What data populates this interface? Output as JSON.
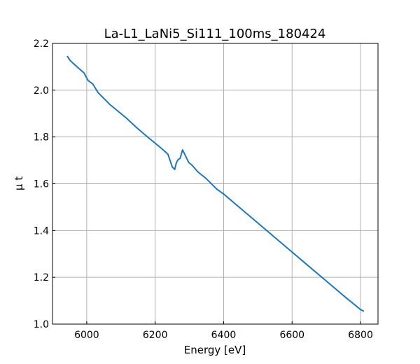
{
  "chart_data": {
    "type": "line",
    "title": "La-L1_LaNi5_Si111_100ms_180424",
    "xlabel": "Energy [eV]",
    "ylabel": "μ t",
    "xlim": [
      5900,
      6851
    ],
    "ylim": [
      1.0,
      2.2
    ],
    "xticks": [
      6000,
      6200,
      6400,
      6600,
      6800
    ],
    "yticks": [
      1.0,
      1.2,
      1.4,
      1.6,
      1.8,
      2.0,
      2.2
    ],
    "xtick_labels": [
      "6000",
      "6200",
      "6400",
      "6600",
      "6800"
    ],
    "ytick_labels": [
      "1.0",
      "1.2",
      "1.4",
      "1.6",
      "1.8",
      "2.0",
      "2.2"
    ],
    "grid": true,
    "series": [
      {
        "name": "mu t",
        "color": "#1f77b4",
        "x": [
          5943,
          5951,
          5971,
          5992,
          6004,
          6018,
          6033,
          6069,
          6114,
          6145,
          6176,
          6216,
          6237,
          6250,
          6257,
          6262,
          6267,
          6273,
          6280,
          6288,
          6298,
          6308,
          6324,
          6349,
          6380,
          6400,
          6450,
          6500,
          6550,
          6600,
          6650,
          6700,
          6750,
          6800,
          6810
        ],
        "y": [
          2.146,
          2.128,
          2.101,
          2.074,
          2.041,
          2.026,
          1.99,
          1.937,
          1.883,
          1.841,
          1.802,
          1.754,
          1.727,
          1.672,
          1.661,
          1.69,
          1.703,
          1.709,
          1.745,
          1.721,
          1.691,
          1.679,
          1.652,
          1.622,
          1.577,
          1.556,
          1.494,
          1.432,
          1.37,
          1.308,
          1.246,
          1.184,
          1.122,
          1.062,
          1.055
        ]
      }
    ]
  }
}
